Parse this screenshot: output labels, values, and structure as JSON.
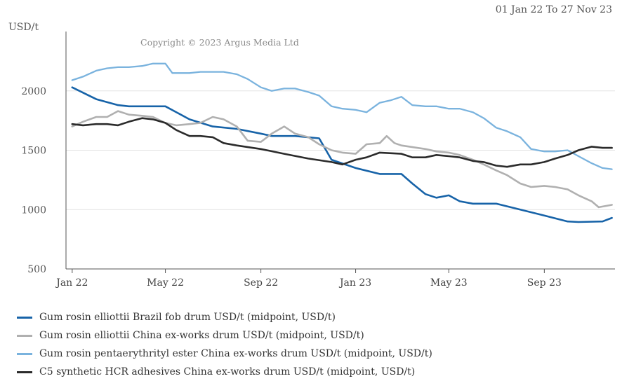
{
  "date_range": "01 Jan 22 To 27 Nov 23",
  "copyright": "Copyright © 2023 Argus Media Ltd",
  "colors": {
    "brazil": "#1763a8",
    "china_rosin": "#b0b0b0",
    "ester": "#7ab3de",
    "c5": "#2b2b2b",
    "grid": "#e3e3e3",
    "axis": "#555555"
  },
  "chart_data": {
    "type": "line",
    "ylabel": "USD/t",
    "ylim": [
      500,
      2500
    ],
    "yticks": [
      500,
      1000,
      1500,
      2000
    ],
    "xlim": [
      "2021-12-24",
      "2023-12-01"
    ],
    "xticks": [
      {
        "date": "2022-01-01",
        "label": "Jan 22"
      },
      {
        "date": "2022-05-01",
        "label": "May 22"
      },
      {
        "date": "2022-09-01",
        "label": "Sep 22"
      },
      {
        "date": "2023-01-01",
        "label": "Jan 23"
      },
      {
        "date": "2023-05-01",
        "label": "May 23"
      },
      {
        "date": "2023-09-01",
        "label": "Sep 23"
      }
    ],
    "grid": true,
    "legend_position": "bottom",
    "series": [
      {
        "name": "Gum rosin elliottii Brazil fob drum USD/t (midpoint, USD/t)",
        "color_key": "brazil",
        "points": [
          [
            "2022-01-01",
            2030
          ],
          [
            "2022-02-01",
            1930
          ],
          [
            "2022-03-01",
            1880
          ],
          [
            "2022-03-15",
            1870
          ],
          [
            "2022-04-15",
            1870
          ],
          [
            "2022-05-01",
            1870
          ],
          [
            "2022-06-01",
            1760
          ],
          [
            "2022-07-01",
            1700
          ],
          [
            "2022-08-01",
            1680
          ],
          [
            "2022-09-01",
            1640
          ],
          [
            "2022-09-15",
            1620
          ],
          [
            "2022-10-15",
            1620
          ],
          [
            "2022-11-15",
            1600
          ],
          [
            "2022-12-01",
            1420
          ],
          [
            "2023-01-01",
            1350
          ],
          [
            "2023-02-01",
            1300
          ],
          [
            "2023-03-01",
            1300
          ],
          [
            "2023-03-15",
            1220
          ],
          [
            "2023-04-01",
            1130
          ],
          [
            "2023-04-15",
            1100
          ],
          [
            "2023-05-01",
            1120
          ],
          [
            "2023-05-15",
            1070
          ],
          [
            "2023-06-01",
            1050
          ],
          [
            "2023-07-01",
            1050
          ],
          [
            "2023-08-01",
            1000
          ],
          [
            "2023-09-01",
            950
          ],
          [
            "2023-10-01",
            900
          ],
          [
            "2023-10-15",
            895
          ],
          [
            "2023-11-15",
            900
          ],
          [
            "2023-11-27",
            930
          ]
        ]
      },
      {
        "name": "Gum rosin elliottii China ex-works drum USD/t (midpoint, USD/t)",
        "color_key": "china_rosin",
        "points": [
          [
            "2022-01-01",
            1700
          ],
          [
            "2022-01-15",
            1740
          ],
          [
            "2022-02-01",
            1780
          ],
          [
            "2022-02-15",
            1780
          ],
          [
            "2022-03-01",
            1830
          ],
          [
            "2022-03-15",
            1800
          ],
          [
            "2022-04-01",
            1790
          ],
          [
            "2022-04-15",
            1780
          ],
          [
            "2022-05-01",
            1730
          ],
          [
            "2022-05-15",
            1710
          ],
          [
            "2022-06-01",
            1720
          ],
          [
            "2022-06-15",
            1730
          ],
          [
            "2022-07-01",
            1780
          ],
          [
            "2022-07-15",
            1760
          ],
          [
            "2022-08-01",
            1700
          ],
          [
            "2022-08-15",
            1580
          ],
          [
            "2022-09-01",
            1570
          ],
          [
            "2022-09-15",
            1640
          ],
          [
            "2022-10-01",
            1700
          ],
          [
            "2022-10-15",
            1640
          ],
          [
            "2022-11-01",
            1610
          ],
          [
            "2022-11-15",
            1550
          ],
          [
            "2022-12-01",
            1500
          ],
          [
            "2022-12-15",
            1480
          ],
          [
            "2023-01-01",
            1470
          ],
          [
            "2023-01-15",
            1550
          ],
          [
            "2023-02-01",
            1560
          ],
          [
            "2023-02-10",
            1620
          ],
          [
            "2023-02-20",
            1560
          ],
          [
            "2023-03-01",
            1540
          ],
          [
            "2023-04-01",
            1510
          ],
          [
            "2023-04-15",
            1490
          ],
          [
            "2023-05-01",
            1480
          ],
          [
            "2023-05-15",
            1460
          ],
          [
            "2023-06-01",
            1420
          ],
          [
            "2023-06-15",
            1380
          ],
          [
            "2023-07-01",
            1330
          ],
          [
            "2023-07-15",
            1290
          ],
          [
            "2023-08-01",
            1220
          ],
          [
            "2023-08-15",
            1190
          ],
          [
            "2023-09-01",
            1200
          ],
          [
            "2023-09-15",
            1190
          ],
          [
            "2023-10-01",
            1170
          ],
          [
            "2023-10-15",
            1120
          ],
          [
            "2023-11-01",
            1070
          ],
          [
            "2023-11-10",
            1020
          ],
          [
            "2023-11-27",
            1040
          ]
        ]
      },
      {
        "name": "Gum rosin pentaerythrityl ester China ex-works drum USD/t (midpoint, USD/t)",
        "color_key": "ester",
        "points": [
          [
            "2022-01-01",
            2090
          ],
          [
            "2022-01-15",
            2120
          ],
          [
            "2022-02-01",
            2170
          ],
          [
            "2022-02-15",
            2190
          ],
          [
            "2022-03-01",
            2200
          ],
          [
            "2022-03-15",
            2200
          ],
          [
            "2022-04-01",
            2210
          ],
          [
            "2022-04-15",
            2230
          ],
          [
            "2022-05-01",
            2230
          ],
          [
            "2022-05-10",
            2150
          ],
          [
            "2022-06-01",
            2150
          ],
          [
            "2022-06-15",
            2160
          ],
          [
            "2022-07-01",
            2160
          ],
          [
            "2022-07-15",
            2160
          ],
          [
            "2022-08-01",
            2140
          ],
          [
            "2022-08-15",
            2100
          ],
          [
            "2022-09-01",
            2030
          ],
          [
            "2022-09-15",
            2000
          ],
          [
            "2022-10-01",
            2020
          ],
          [
            "2022-10-15",
            2020
          ],
          [
            "2022-11-01",
            1990
          ],
          [
            "2022-11-15",
            1960
          ],
          [
            "2022-12-01",
            1870
          ],
          [
            "2022-12-15",
            1850
          ],
          [
            "2023-01-01",
            1840
          ],
          [
            "2023-01-15",
            1820
          ],
          [
            "2023-02-01",
            1900
          ],
          [
            "2023-02-15",
            1920
          ],
          [
            "2023-03-01",
            1950
          ],
          [
            "2023-03-15",
            1880
          ],
          [
            "2023-04-01",
            1870
          ],
          [
            "2023-04-15",
            1870
          ],
          [
            "2023-05-01",
            1850
          ],
          [
            "2023-05-15",
            1850
          ],
          [
            "2023-06-01",
            1820
          ],
          [
            "2023-06-15",
            1770
          ],
          [
            "2023-07-01",
            1690
          ],
          [
            "2023-07-15",
            1660
          ],
          [
            "2023-08-01",
            1610
          ],
          [
            "2023-08-15",
            1510
          ],
          [
            "2023-09-01",
            1490
          ],
          [
            "2023-09-15",
            1490
          ],
          [
            "2023-10-01",
            1500
          ],
          [
            "2023-10-15",
            1450
          ],
          [
            "2023-11-01",
            1390
          ],
          [
            "2023-11-15",
            1350
          ],
          [
            "2023-11-27",
            1340
          ]
        ]
      },
      {
        "name": "C5 synthetic HCR adhesives China ex-works drum USD/t (midpoint, USD/t)",
        "color_key": "c5",
        "points": [
          [
            "2022-01-01",
            1720
          ],
          [
            "2022-01-15",
            1710
          ],
          [
            "2022-02-01",
            1720
          ],
          [
            "2022-02-15",
            1720
          ],
          [
            "2022-03-01",
            1710
          ],
          [
            "2022-03-15",
            1740
          ],
          [
            "2022-04-01",
            1770
          ],
          [
            "2022-04-15",
            1760
          ],
          [
            "2022-05-01",
            1730
          ],
          [
            "2022-05-15",
            1670
          ],
          [
            "2022-06-01",
            1620
          ],
          [
            "2022-06-15",
            1620
          ],
          [
            "2022-07-01",
            1610
          ],
          [
            "2022-07-15",
            1560
          ],
          [
            "2022-08-01",
            1540
          ],
          [
            "2022-09-01",
            1510
          ],
          [
            "2022-10-01",
            1470
          ],
          [
            "2022-11-01",
            1430
          ],
          [
            "2022-12-01",
            1400
          ],
          [
            "2022-12-15",
            1380
          ],
          [
            "2023-01-01",
            1420
          ],
          [
            "2023-01-15",
            1440
          ],
          [
            "2023-02-01",
            1480
          ],
          [
            "2023-03-01",
            1470
          ],
          [
            "2023-03-15",
            1440
          ],
          [
            "2023-04-01",
            1440
          ],
          [
            "2023-04-15",
            1460
          ],
          [
            "2023-05-01",
            1450
          ],
          [
            "2023-05-15",
            1440
          ],
          [
            "2023-06-01",
            1410
          ],
          [
            "2023-06-15",
            1400
          ],
          [
            "2023-07-01",
            1370
          ],
          [
            "2023-07-15",
            1360
          ],
          [
            "2023-08-01",
            1380
          ],
          [
            "2023-08-15",
            1380
          ],
          [
            "2023-09-01",
            1400
          ],
          [
            "2023-09-15",
            1430
          ],
          [
            "2023-10-01",
            1460
          ],
          [
            "2023-10-15",
            1500
          ],
          [
            "2023-11-01",
            1530
          ],
          [
            "2023-11-15",
            1520
          ],
          [
            "2023-11-27",
            1520
          ]
        ]
      }
    ]
  }
}
